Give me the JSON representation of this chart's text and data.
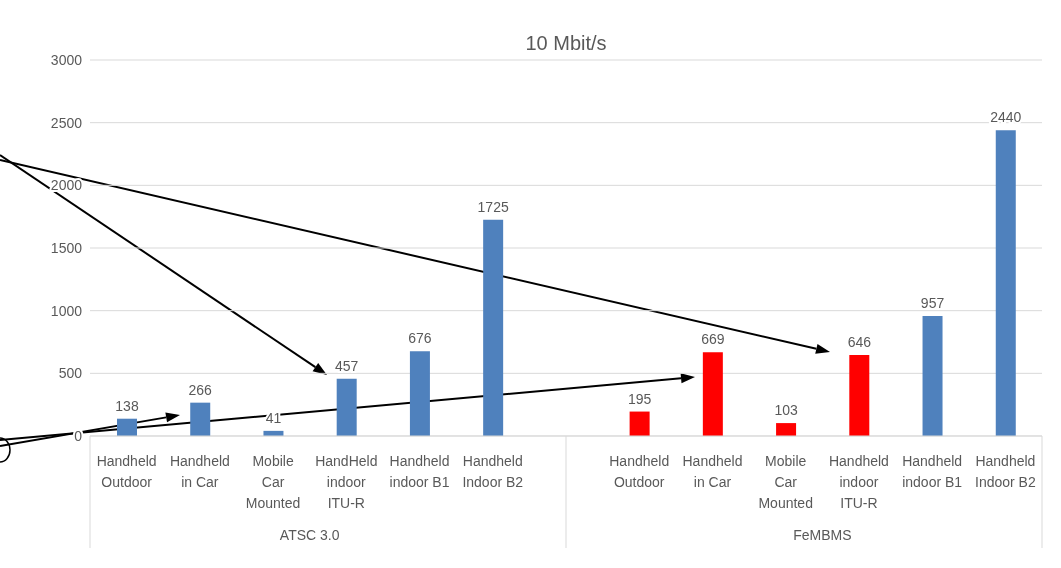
{
  "chart_data": {
    "type": "bar",
    "title": "10 Mbit/s",
    "categories": [
      "Handheld Outdoor",
      "Handheld in Car",
      "Mobile Car Mounted",
      "HandHeld indoor ITU-R",
      "Handheld indoor B1",
      "Handheld Indoor B2",
      null,
      "Handheld Outdoor",
      "Handheld in Car",
      "Mobile Car Mounted",
      "Handheld indoor ITU-R",
      "Handheld indoor B1",
      "Handheld Indoor B2"
    ],
    "values": [
      138,
      266,
      41,
      457,
      676,
      1725,
      null,
      195,
      669,
      103,
      646,
      957,
      2440
    ],
    "colors": [
      "#4f81bd",
      "#4f81bd",
      "#4f81bd",
      "#4f81bd",
      "#4f81bd",
      "#4f81bd",
      "#4f81bd",
      "#ff0000",
      "#ff0000",
      "#ff0000",
      "#ff0000",
      "#4f81bd",
      "#4f81bd"
    ],
    "ylim": [
      0,
      3000
    ],
    "yticks": [
      0,
      500,
      1000,
      1500,
      2000,
      2500,
      3000
    ],
    "grid": "y",
    "data_labels": true,
    "annotations": [
      "ATSC 3.0",
      "FeMBMS"
    ]
  }
}
